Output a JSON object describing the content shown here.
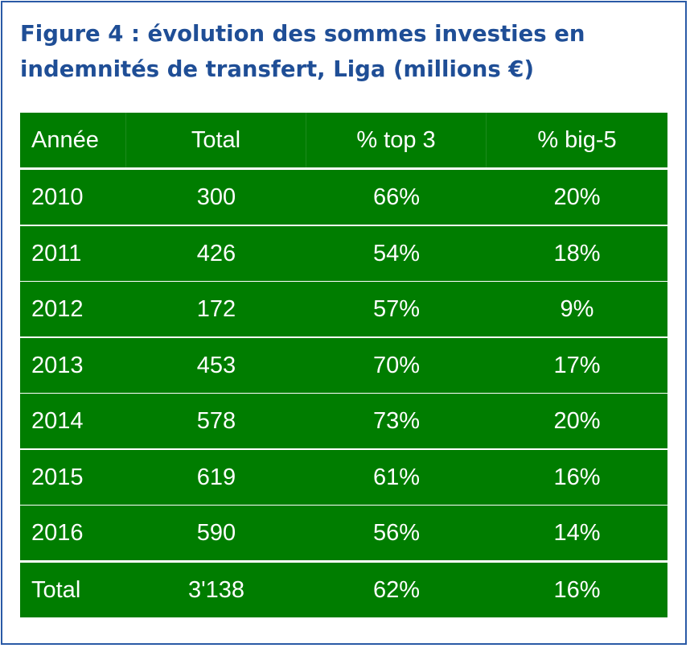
{
  "title": "Figure 4 : évolution des sommes investies en indemnités de transfert, Liga (millions €)",
  "chart_data": {
    "type": "table",
    "title": "Figure 4 : évolution des sommes investies en indemnités de transfert, Liga (millions €)",
    "columns": [
      "Année",
      "Total",
      "% top 3",
      "% big-5"
    ],
    "rows": [
      [
        "2010",
        "300",
        "66%",
        "20%"
      ],
      [
        "2011",
        "426",
        "54%",
        "18%"
      ],
      [
        "2012",
        "172",
        "57%",
        "9%"
      ],
      [
        "2013",
        "453",
        "70%",
        "17%"
      ],
      [
        "2014",
        "578",
        "73%",
        "20%"
      ],
      [
        "2015",
        "619",
        "61%",
        "16%"
      ],
      [
        "2016",
        "590",
        "56%",
        "14%"
      ]
    ],
    "total_row": [
      "Total",
      "3'138",
      "62%",
      "16%"
    ]
  },
  "colors": {
    "title": "#1f4e96",
    "frame": "#2a5aa6",
    "cell_bg": "#007d00",
    "cell_text": "#ffffff"
  }
}
